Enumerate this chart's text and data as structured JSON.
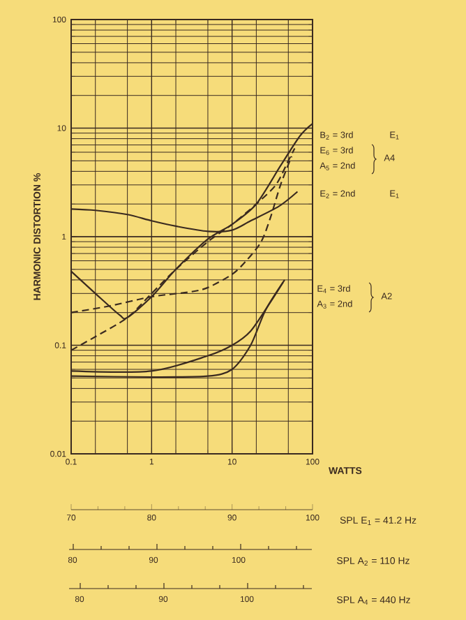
{
  "chart_data": {
    "type": "line",
    "xlabel": "WATTS",
    "ylabel": "HARMONIC DISTORTION %",
    "log": "xy",
    "grid": true,
    "marker": "none",
    "xlim": [
      0.1,
      100
    ],
    "ylim": [
      0.01,
      100
    ],
    "xticks": [
      {
        "value": 0.1,
        "label": "0.1"
      },
      {
        "value": 1,
        "label": "1"
      },
      {
        "value": 10,
        "label": "10"
      },
      {
        "value": 100,
        "label": "100"
      }
    ],
    "yticks": [
      {
        "value": 0.01,
        "label": "0.01"
      },
      {
        "value": 0.1,
        "label": "0.1"
      },
      {
        "value": 1,
        "label": "1"
      },
      {
        "value": 10,
        "label": "10"
      },
      {
        "value": 100,
        "label": "100"
      }
    ],
    "x2lim": [
      70,
      100
    ],
    "x2label": "SPL  E$_{1}$ = 41.2 Hz",
    "x2ticks": [
      70,
      80,
      90,
      100
    ],
    "series": [
      {
        "color": "#3a2a20",
        "line_style": "solid",
        "x": [
          0.1,
          0.2,
          0.5,
          1,
          2,
          5,
          10,
          17,
          38,
          65
        ],
        "values": [
          1.8,
          1.75,
          1.6,
          1.4,
          1.25,
          1.12,
          1.15,
          1.4,
          1.9,
          2.6
        ]
      },
      {
        "color": "#3a2a20",
        "line_style": "solid",
        "x": [
          0.1,
          0.2,
          0.4,
          0.5,
          1,
          2,
          5,
          10,
          20,
          40,
          70,
          100
        ],
        "values": [
          0.48,
          0.3,
          0.19,
          0.18,
          0.28,
          0.5,
          0.95,
          1.3,
          2,
          4.5,
          8.5,
          11
        ]
      },
      {
        "color": "#3a2a20",
        "line_style": "dashed",
        "x": [
          0.1,
          0.2,
          0.5,
          1,
          2,
          5,
          10,
          20,
          35,
          50,
          60
        ],
        "values": [
          0.09,
          0.12,
          0.18,
          0.3,
          0.5,
          0.9,
          1.3,
          2,
          3,
          5,
          6.5
        ]
      },
      {
        "color": "#3a2a20",
        "line_style": "dashed",
        "x": [
          0.1,
          0.3,
          1,
          3,
          5,
          10,
          15,
          23,
          30,
          40,
          55
        ],
        "values": [
          0.2,
          0.23,
          0.28,
          0.31,
          0.34,
          0.45,
          0.6,
          0.9,
          1.5,
          3,
          5.5
        ]
      },
      {
        "color": "#3a2a20",
        "line_style": "solid",
        "x": [
          0.1,
          1,
          5,
          10,
          17,
          30,
          43
        ],
        "values": [
          0.058,
          0.058,
          0.08,
          0.1,
          0.135,
          0.25,
          0.38
        ]
      },
      {
        "color": "#3a2a20",
        "line_style": "solid",
        "x": [
          0.1,
          1,
          5,
          10,
          17,
          26,
          45
        ],
        "values": [
          0.052,
          0.051,
          0.052,
          0.06,
          0.1,
          0.21,
          0.4
        ]
      }
    ],
    "annotations": [
      "B$_{2}$ = 3rd",
      "E$_{1}$",
      "E$_{6}$ = 3rd",
      "A$_{5}$ = 2nd",
      "A4",
      "E$_{2}$ = 2nd",
      "E$_{1}$",
      "E$_{4}$ = 3rd",
      "A$_{3}$ = 2nd",
      "A2",
      "80",
      "90",
      "100",
      "SPL  A$_{2}$ = 110 Hz",
      "80",
      "90",
      "100",
      "SPL  A$_{4}$ = 440 Hz"
    ]
  }
}
